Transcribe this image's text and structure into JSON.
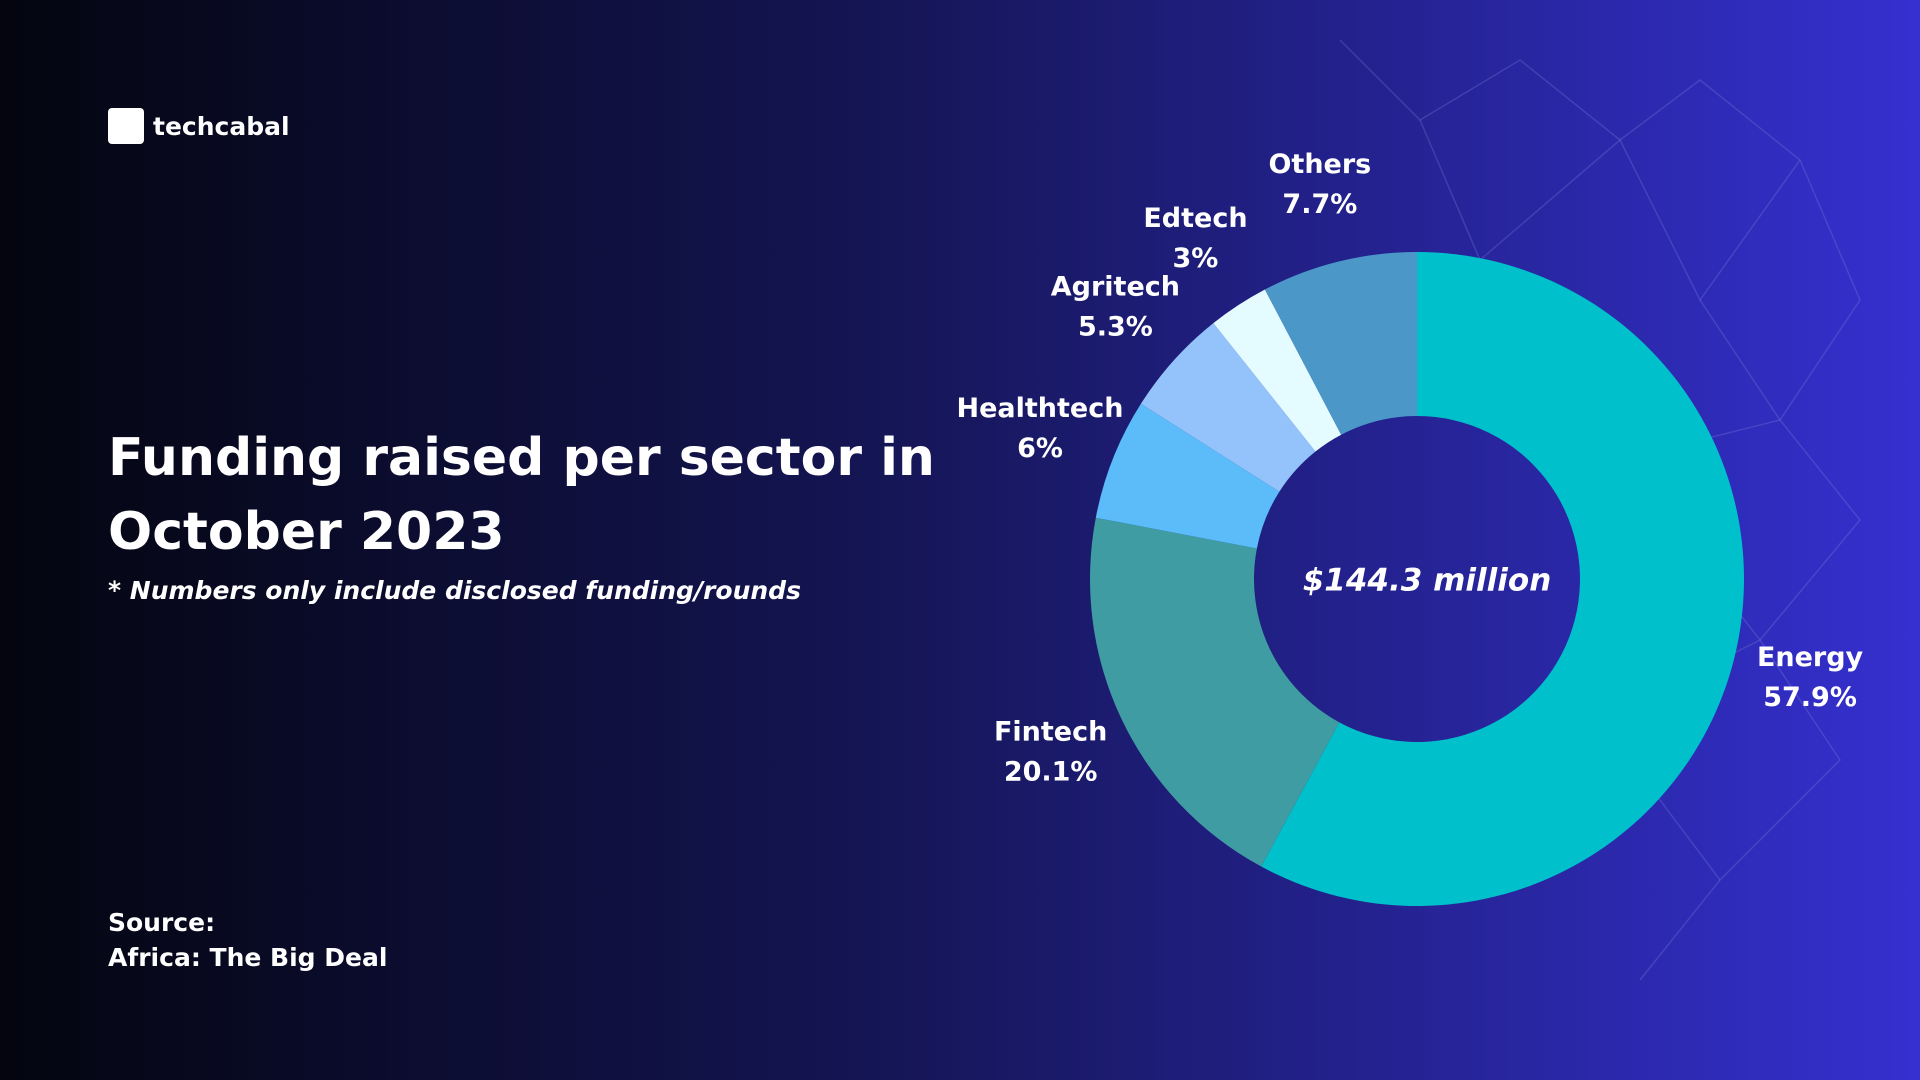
{
  "brand": "techcabal",
  "chart_data": {
    "type": "pie",
    "title": "Funding raised per sector in October 2023",
    "subtitle": "* Numbers only include disclosed funding/rounds",
    "center_label": "$144.3 million",
    "source": [
      "Source:",
      "Africa: The Big Deal"
    ],
    "categories": [
      "Energy",
      "Fintech",
      "Healthtech",
      "Agritech",
      "Edtech",
      "Others"
    ],
    "values": [
      57.9,
      20.1,
      6,
      5.3,
      3,
      7.7
    ],
    "value_labels": [
      "57.9%",
      "20.1%",
      "6%",
      "5.3%",
      "3%",
      "7.7%"
    ],
    "colors": [
      "#00c0cc",
      "#3f9ca2",
      "#5bbcf9",
      "#93c3fa",
      "#e4fcff",
      "#4b98c8"
    ],
    "donut": true
  }
}
